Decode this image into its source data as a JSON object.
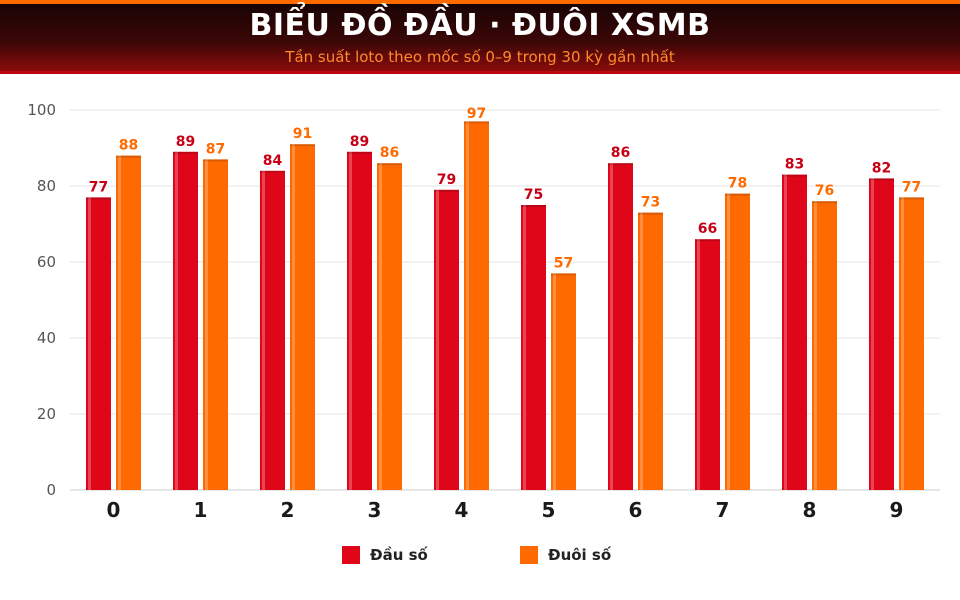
{
  "header": {
    "title": "BIỂU ĐỒ ĐẦU · ĐUÔI XSMB",
    "subtitle": "Tần suất loto theo mốc số 0–9 trong 30 kỳ gần nhất"
  },
  "colors": {
    "dau": "#e0061a",
    "duoi": "#ff6a00",
    "dau_label": "#c80016",
    "duoi_label": "#ff6a00",
    "grid": "#e4e4e4",
    "axis_text": "#555555"
  },
  "chart_data": {
    "type": "bar",
    "categories": [
      "0",
      "1",
      "2",
      "3",
      "4",
      "5",
      "6",
      "7",
      "8",
      "9"
    ],
    "series": [
      {
        "name": "Đầu số",
        "values": [
          77,
          89,
          84,
          89,
          79,
          75,
          86,
          66,
          83,
          82
        ]
      },
      {
        "name": "Đuôi số",
        "values": [
          88,
          87,
          91,
          86,
          97,
          57,
          73,
          78,
          76,
          77
        ]
      }
    ],
    "ylim": [
      0,
      100
    ],
    "yticks": [
      0,
      20,
      40,
      60,
      80,
      100
    ],
    "grid": true,
    "legend_position": "bottom-center"
  }
}
